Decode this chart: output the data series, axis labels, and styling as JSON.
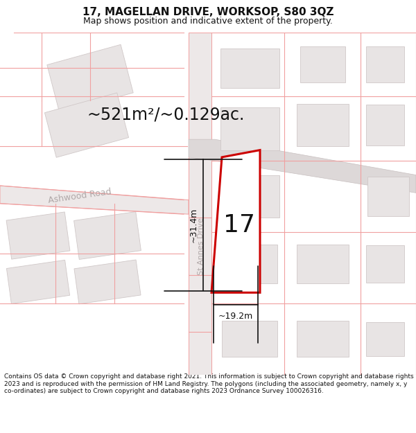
{
  "title": "17, MAGELLAN DRIVE, WORKSOP, S80 3QZ",
  "subtitle": "Map shows position and indicative extent of the property.",
  "footer": "Contains OS data © Crown copyright and database right 2021. This information is subject to Crown copyright and database rights 2023 and is reproduced with the permission of HM Land Registry. The polygons (including the associated geometry, namely x, y co-ordinates) are subject to Crown copyright and database rights 2023 Ordnance Survey 100026316.",
  "area_label": "~521m²/~0.129ac.",
  "number_label": "17",
  "width_label": "~19.2m",
  "height_label": "~31.4m",
  "road_label_st_annes": "St Annes Drive",
  "road_label_ashwood": "Ashwood Road",
  "map_bg": "#f9f6f6",
  "plot_fill": "#ffffff",
  "plot_border": "#cc0000",
  "building_fill": "#e8e4e4",
  "building_edge": "#d0c8c8",
  "road_fill": "#f0eaea",
  "road_line": "#f0a0a0",
  "dim_color": "#111111",
  "road_label_color": "#b0a8a8",
  "title_fontsize": 11,
  "subtitle_fontsize": 9,
  "footer_fontsize": 6.5,
  "area_fontsize": 17,
  "number_fontsize": 26,
  "dim_fontsize": 9
}
